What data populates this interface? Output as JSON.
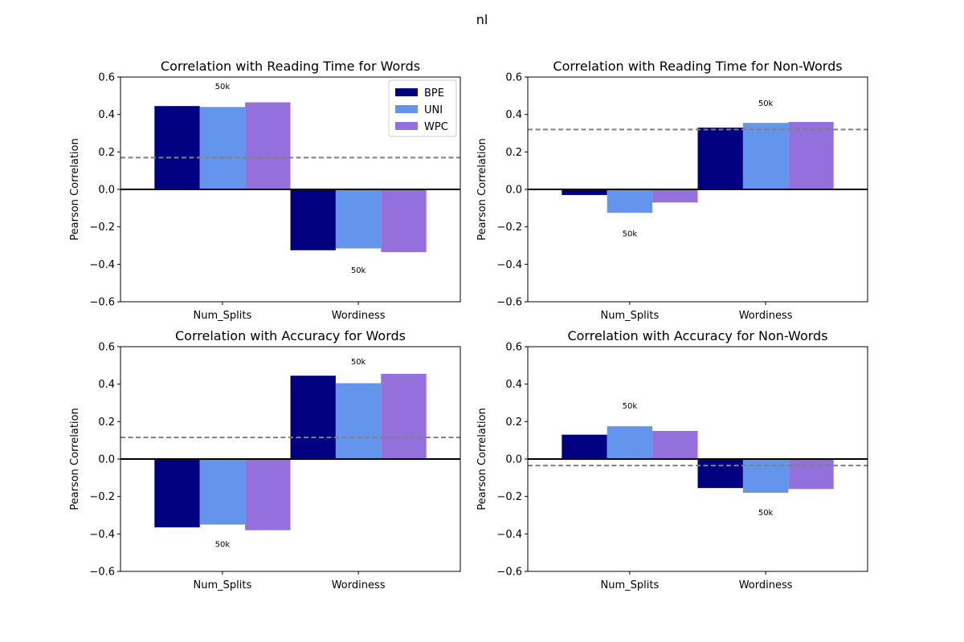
{
  "suptitle": "nl",
  "colors": {
    "BPE": "#000080",
    "UNI": "#6495ED",
    "WPC": "#9370DB",
    "baseline": "#808080",
    "zero": "#000000"
  },
  "legend": {
    "placement": "upper right (top-left panel)",
    "entries": [
      "BPE",
      "UNI",
      "WPC"
    ]
  },
  "chart_data": [
    {
      "type": "bar",
      "title": "Correlation with Reading Time for Words",
      "xlabel": "",
      "ylabel": "Pearson Correlation",
      "categories": [
        "Num_Splits",
        "Wordiness"
      ],
      "series": [
        {
          "name": "BPE",
          "values": [
            0.445,
            -0.325
          ]
        },
        {
          "name": "UNI",
          "values": [
            0.44,
            -0.315
          ]
        },
        {
          "name": "WPC",
          "values": [
            0.465,
            -0.335
          ]
        }
      ],
      "ylim": [
        -0.6,
        0.6
      ],
      "yticks": [
        "−0.6",
        "−0.4",
        "−0.2",
        "0.0",
        "0.2",
        "0.4",
        "0.6"
      ],
      "baseline": 0.17,
      "annotations": [
        {
          "text": "50k",
          "category": 0,
          "y": 0.55
        },
        {
          "text": "50k",
          "category": 1,
          "y": -0.43
        }
      ],
      "legend": true
    },
    {
      "type": "bar",
      "title": "Correlation with Reading Time for Non-Words",
      "xlabel": "",
      "ylabel": "Pearson Correlation",
      "categories": [
        "Num_Splits",
        "Wordiness"
      ],
      "series": [
        {
          "name": "BPE",
          "values": [
            -0.03,
            0.33
          ]
        },
        {
          "name": "UNI",
          "values": [
            -0.125,
            0.355
          ]
        },
        {
          "name": "WPC",
          "values": [
            -0.07,
            0.36
          ]
        }
      ],
      "ylim": [
        -0.6,
        0.6
      ],
      "yticks": [
        "−0.6",
        "−0.4",
        "−0.2",
        "0.0",
        "0.2",
        "0.4",
        "0.6"
      ],
      "baseline": 0.32,
      "annotations": [
        {
          "text": "50k",
          "category": 0,
          "y": -0.235
        },
        {
          "text": "50k",
          "category": 1,
          "y": 0.46
        }
      ],
      "legend": false
    },
    {
      "type": "bar",
      "title": "Correlation with Accuracy for Words",
      "xlabel": "",
      "ylabel": "Pearson Correlation",
      "categories": [
        "Num_Splits",
        "Wordiness"
      ],
      "series": [
        {
          "name": "BPE",
          "values": [
            -0.365,
            0.445
          ]
        },
        {
          "name": "UNI",
          "values": [
            -0.35,
            0.405
          ]
        },
        {
          "name": "WPC",
          "values": [
            -0.38,
            0.455
          ]
        }
      ],
      "ylim": [
        -0.6,
        0.6
      ],
      "yticks": [
        "−0.6",
        "−0.4",
        "−0.2",
        "0.0",
        "0.2",
        "0.4",
        "0.6"
      ],
      "baseline": 0.115,
      "annotations": [
        {
          "text": "50k",
          "category": 0,
          "y": -0.455
        },
        {
          "text": "50k",
          "category": 1,
          "y": 0.52
        }
      ],
      "legend": false
    },
    {
      "type": "bar",
      "title": "Correlation with Accuracy for Non-Words",
      "xlabel": "",
      "ylabel": "Pearson Correlation",
      "categories": [
        "Num_Splits",
        "Wordiness"
      ],
      "series": [
        {
          "name": "BPE",
          "values": [
            0.13,
            -0.155
          ]
        },
        {
          "name": "UNI",
          "values": [
            0.175,
            -0.18
          ]
        },
        {
          "name": "WPC",
          "values": [
            0.15,
            -0.16
          ]
        }
      ],
      "ylim": [
        -0.6,
        0.6
      ],
      "yticks": [
        "−0.6",
        "−0.4",
        "−0.2",
        "0.0",
        "0.2",
        "0.4",
        "0.6"
      ],
      "baseline": -0.035,
      "annotations": [
        {
          "text": "50k",
          "category": 0,
          "y": 0.285
        },
        {
          "text": "50k",
          "category": 1,
          "y": -0.285
        }
      ],
      "legend": false
    }
  ]
}
